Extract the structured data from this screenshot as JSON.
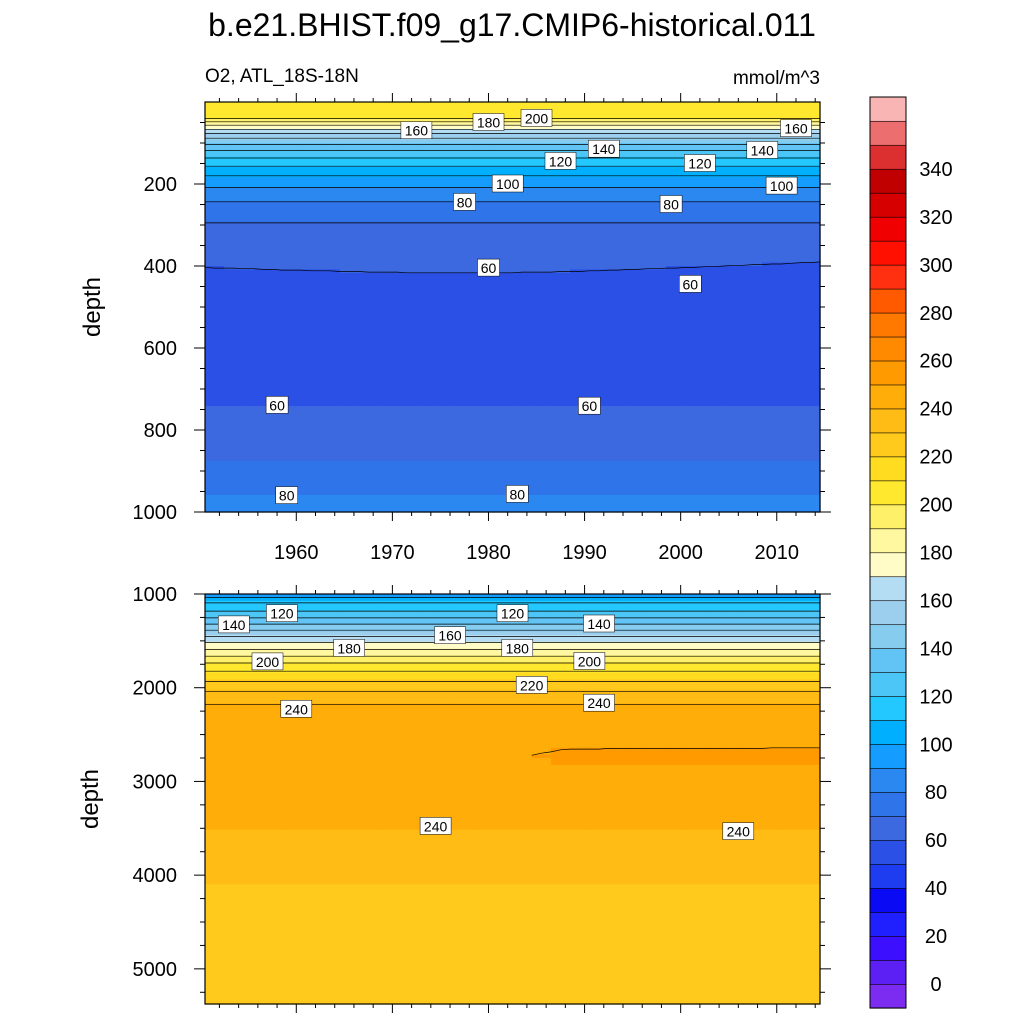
{
  "title": "b.e21.BHIST.f09_g17.CMIP6-historical.011",
  "subtitle_left": "O2, ATL_18S-18N",
  "subtitle_right": "mmol/m^3",
  "colorbar": {
    "levels": [
      -10,
      0,
      10,
      20,
      30,
      40,
      50,
      60,
      70,
      80,
      90,
      100,
      110,
      120,
      130,
      140,
      150,
      160,
      170,
      180,
      190,
      200,
      210,
      220,
      230,
      240,
      250,
      260,
      270,
      280,
      290,
      300,
      310,
      320,
      330,
      340,
      350,
      360
    ],
    "colors": [
      "#7b2cf0",
      "#5c20f5",
      "#3c10ff",
      "#2020ff",
      "#0a0af5",
      "#1e3cf0",
      "#2a50e6",
      "#3c68e0",
      "#2f74e8",
      "#2a88f0",
      "#159cff",
      "#00b0ff",
      "#22c8ff",
      "#4cc6f6",
      "#62c4f4",
      "#86ccef",
      "#9ccfed",
      "#b4ddf3",
      "#fffcc8",
      "#fff8a0",
      "#fff06a",
      "#ffe82e",
      "#ffdc20",
      "#ffca1c",
      "#ffbc14",
      "#ffad08",
      "#ff9a00",
      "#ff8a00",
      "#ff7800",
      "#ff5a00",
      "#ff3010",
      "#ff1000",
      "#f00000",
      "#d60000",
      "#c00000",
      "#dc3030",
      "#ec6e6e",
      "#f9b4b4"
    ],
    "labels": [
      "0",
      "20",
      "40",
      "60",
      "80",
      "100",
      "120",
      "140",
      "160",
      "180",
      "200",
      "220",
      "240",
      "260",
      "280",
      "300",
      "320",
      "340"
    ]
  },
  "chart_data": [
    {
      "type": "contour",
      "panel": "upper",
      "ylabel": "depth",
      "x_range": [
        1950.5,
        2014.5
      ],
      "y_range": [
        0,
        1000
      ],
      "y_inverted": true,
      "x_ticks": [
        1960,
        1970,
        1980,
        1990,
        2000,
        2010
      ],
      "x_tick_labels": [
        "1960",
        "1970",
        "1980",
        "1990",
        "2000",
        "2010"
      ],
      "y_ticks": [
        200,
        400,
        600,
        800,
        1000
      ],
      "y_tick_labels": [
        "200",
        "400",
        "600",
        "800",
        "1000"
      ],
      "contour_labels": [
        {
          "text": "200",
          "x": 1985.0,
          "y": 40
        },
        {
          "text": "180",
          "x": 1980.0,
          "y": 50
        },
        {
          "text": "160",
          "x": 1972.5,
          "y": 70
        },
        {
          "text": "160",
          "x": 2012.0,
          "y": 65
        },
        {
          "text": "140",
          "x": 1992.0,
          "y": 115
        },
        {
          "text": "140",
          "x": 2008.5,
          "y": 118
        },
        {
          "text": "120",
          "x": 1987.5,
          "y": 145
        },
        {
          "text": "120",
          "x": 2002.0,
          "y": 150
        },
        {
          "text": "100",
          "x": 1982.0,
          "y": 200
        },
        {
          "text": "100",
          "x": 2010.5,
          "y": 205
        },
        {
          "text": "80",
          "x": 1977.5,
          "y": 245
        },
        {
          "text": "80",
          "x": 1999.0,
          "y": 250
        },
        {
          "text": "60",
          "x": 1980.0,
          "y": 405
        },
        {
          "text": "60",
          "x": 2001.0,
          "y": 445
        },
        {
          "text": "60",
          "x": 1958.0,
          "y": 740
        },
        {
          "text": "60",
          "x": 1990.5,
          "y": 742
        },
        {
          "text": "80",
          "x": 1959.0,
          "y": 960
        },
        {
          "text": "80",
          "x": 1983.0,
          "y": 957
        }
      ]
    },
    {
      "type": "contour",
      "panel": "lower",
      "ylabel": "depth",
      "x_range": [
        1950.5,
        2014.5
      ],
      "y_range": [
        1000,
        5375
      ],
      "y_inverted": true,
      "x_ticks": [
        1960,
        1970,
        1980,
        1990,
        2000,
        2010
      ],
      "x_tick_labels": [
        "",
        "",
        "",
        "",
        "",
        ""
      ],
      "y_ticks": [
        1000,
        2000,
        3000,
        4000,
        5000
      ],
      "y_tick_labels": [
        "1000",
        "2000",
        "3000",
        "4000",
        "5000"
      ],
      "contour_labels": [
        {
          "text": "120",
          "x": 1958.5,
          "y": 1210
        },
        {
          "text": "120",
          "x": 1982.5,
          "y": 1210
        },
        {
          "text": "140",
          "x": 1953.5,
          "y": 1330
        },
        {
          "text": "140",
          "x": 1991.5,
          "y": 1320
        },
        {
          "text": "160",
          "x": 1976.0,
          "y": 1445
        },
        {
          "text": "180",
          "x": 1965.5,
          "y": 1580
        },
        {
          "text": "180",
          "x": 1983.0,
          "y": 1580
        },
        {
          "text": "200",
          "x": 1957.0,
          "y": 1725
        },
        {
          "text": "200",
          "x": 1990.5,
          "y": 1720
        },
        {
          "text": "220",
          "x": 1984.5,
          "y": 1975
        },
        {
          "text": "240",
          "x": 1960.0,
          "y": 2230
        },
        {
          "text": "240",
          "x": 1991.5,
          "y": 2165
        },
        {
          "text": "240",
          "x": 1974.5,
          "y": 3480
        },
        {
          "text": "240",
          "x": 2006.0,
          "y": 3535
        }
      ]
    }
  ]
}
